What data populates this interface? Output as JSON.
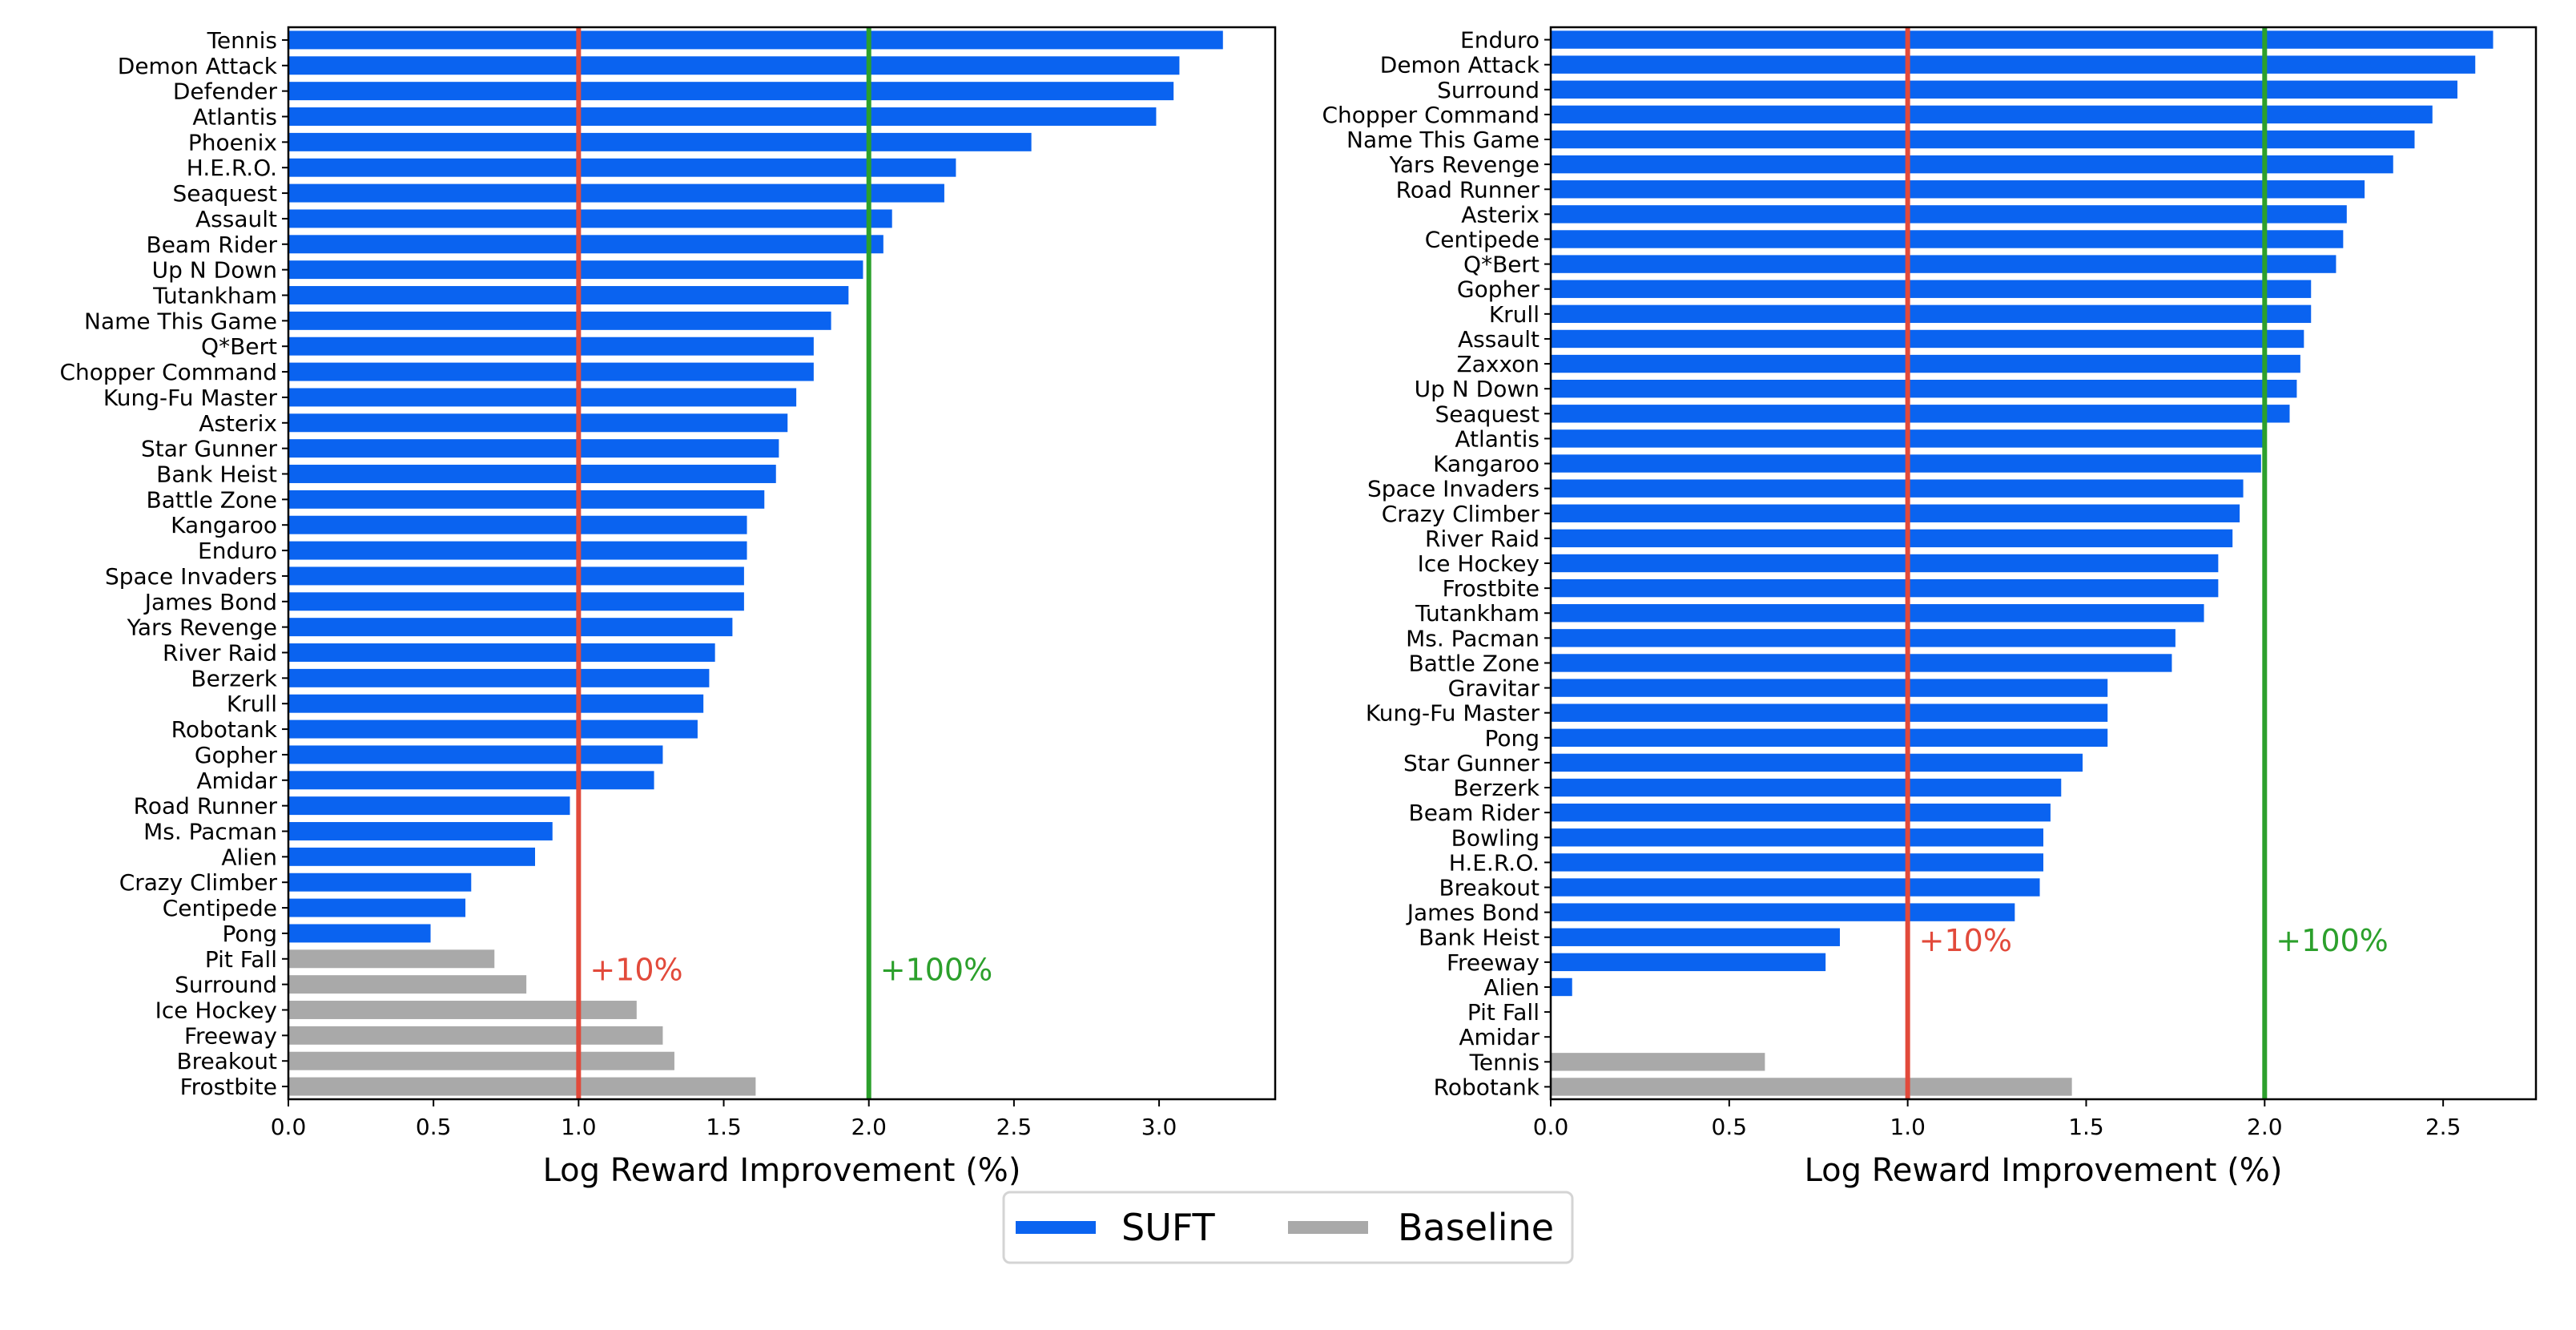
{
  "chart_data": [
    {
      "type": "bar",
      "orientation": "horizontal",
      "xlabel": "Log Reward Improvement (%)",
      "ylabel": "",
      "xlim": [
        0,
        3.4
      ],
      "xticks": [
        "0.0",
        "0.5",
        "1.0",
        "1.5",
        "2.0",
        "2.5",
        "3.0"
      ],
      "grid": false,
      "reference_lines": [
        {
          "x": 1.0,
          "label": "+10%",
          "color": "#e24a3b"
        },
        {
          "x": 2.0,
          "label": "+100%",
          "color": "#2ca02c"
        }
      ],
      "categories": [
        "Tennis",
        "Demon Attack",
        "Defender",
        "Atlantis",
        "Phoenix",
        "H.E.R.O.",
        "Seaquest",
        "Assault",
        "Beam Rider",
        "Up N Down",
        "Tutankham",
        "Name This Game",
        "Q*Bert",
        "Chopper Command",
        "Kung-Fu Master",
        "Asterix",
        "Star Gunner",
        "Bank Heist",
        "Battle Zone",
        "Kangaroo",
        "Enduro",
        "Space Invaders",
        "James Bond",
        "Yars Revenge",
        "River Raid",
        "Berzerk",
        "Krull",
        "Robotank",
        "Gopher",
        "Amidar",
        "Road Runner",
        "Ms. Pacman",
        "Alien",
        "Crazy Climber",
        "Centipede",
        "Pong",
        "Pit Fall",
        "Surround",
        "Ice Hockey",
        "Freeway",
        "Breakout",
        "Frostbite"
      ],
      "values": [
        3.22,
        3.07,
        3.05,
        2.99,
        2.56,
        2.3,
        2.26,
        2.08,
        2.05,
        1.98,
        1.93,
        1.87,
        1.81,
        1.81,
        1.75,
        1.72,
        1.69,
        1.68,
        1.64,
        1.58,
        1.58,
        1.57,
        1.57,
        1.53,
        1.47,
        1.45,
        1.43,
        1.41,
        1.29,
        1.26,
        0.97,
        0.91,
        0.85,
        0.63,
        0.61,
        0.49,
        0.71,
        0.82,
        1.2,
        1.29,
        1.33,
        1.61
      ],
      "series_of_bar": [
        "SUFT",
        "SUFT",
        "SUFT",
        "SUFT",
        "SUFT",
        "SUFT",
        "SUFT",
        "SUFT",
        "SUFT",
        "SUFT",
        "SUFT",
        "SUFT",
        "SUFT",
        "SUFT",
        "SUFT",
        "SUFT",
        "SUFT",
        "SUFT",
        "SUFT",
        "SUFT",
        "SUFT",
        "SUFT",
        "SUFT",
        "SUFT",
        "SUFT",
        "SUFT",
        "SUFT",
        "SUFT",
        "SUFT",
        "SUFT",
        "SUFT",
        "SUFT",
        "SUFT",
        "SUFT",
        "SUFT",
        "SUFT",
        "Baseline",
        "Baseline",
        "Baseline",
        "Baseline",
        "Baseline",
        "Baseline"
      ]
    },
    {
      "type": "bar",
      "orientation": "horizontal",
      "xlabel": "Log Reward Improvement (%)",
      "ylabel": "",
      "xlim": [
        0,
        2.76
      ],
      "xticks": [
        "0.0",
        "0.5",
        "1.0",
        "1.5",
        "2.0",
        "2.5"
      ],
      "grid": false,
      "reference_lines": [
        {
          "x": 1.0,
          "label": "+10%",
          "color": "#e24a3b"
        },
        {
          "x": 2.0,
          "label": "+100%",
          "color": "#2ca02c"
        }
      ],
      "categories": [
        "Enduro",
        "Demon Attack",
        "Surround",
        "Chopper Command",
        "Name This Game",
        "Yars Revenge",
        "Road Runner",
        "Asterix",
        "Centipede",
        "Q*Bert",
        "Gopher",
        "Krull",
        "Assault",
        "Zaxxon",
        "Up N Down",
        "Seaquest",
        "Atlantis",
        "Kangaroo",
        "Space Invaders",
        "Crazy Climber",
        "River Raid",
        "Ice Hockey",
        "Frostbite",
        "Tutankham",
        "Ms. Pacman",
        "Battle Zone",
        "Gravitar",
        "Kung-Fu Master",
        "Pong",
        "Star Gunner",
        "Berzerk",
        "Beam Rider",
        "Bowling",
        "H.E.R.O.",
        "Breakout",
        "James Bond",
        "Bank Heist",
        "Freeway",
        "Alien",
        "Pit Fall",
        "Amidar",
        "Tennis",
        "Robotank"
      ],
      "values": [
        2.64,
        2.59,
        2.54,
        2.47,
        2.42,
        2.36,
        2.28,
        2.23,
        2.22,
        2.2,
        2.13,
        2.13,
        2.11,
        2.1,
        2.09,
        2.07,
        2.0,
        1.99,
        1.94,
        1.93,
        1.91,
        1.87,
        1.87,
        1.83,
        1.75,
        1.74,
        1.56,
        1.56,
        1.56,
        1.49,
        1.43,
        1.4,
        1.38,
        1.38,
        1.37,
        1.3,
        0.81,
        0.77,
        0.06,
        0.0,
        0.0,
        0.6,
        1.46
      ],
      "series_of_bar": [
        "SUFT",
        "SUFT",
        "SUFT",
        "SUFT",
        "SUFT",
        "SUFT",
        "SUFT",
        "SUFT",
        "SUFT",
        "SUFT",
        "SUFT",
        "SUFT",
        "SUFT",
        "SUFT",
        "SUFT",
        "SUFT",
        "SUFT",
        "SUFT",
        "SUFT",
        "SUFT",
        "SUFT",
        "SUFT",
        "SUFT",
        "SUFT",
        "SUFT",
        "SUFT",
        "SUFT",
        "SUFT",
        "SUFT",
        "SUFT",
        "SUFT",
        "SUFT",
        "SUFT",
        "SUFT",
        "SUFT",
        "SUFT",
        "SUFT",
        "SUFT",
        "SUFT",
        "SUFT",
        "SUFT",
        "Baseline",
        "Baseline"
      ]
    }
  ],
  "legend": {
    "placement": "bottom-center",
    "entries": [
      {
        "name": "SUFT",
        "color": "#0a63f0"
      },
      {
        "name": "Baseline",
        "color": "#a9a9a9"
      }
    ]
  },
  "colors": {
    "suft": "#0a63f0",
    "baseline": "#a9a9a9",
    "axis": "#000000"
  }
}
